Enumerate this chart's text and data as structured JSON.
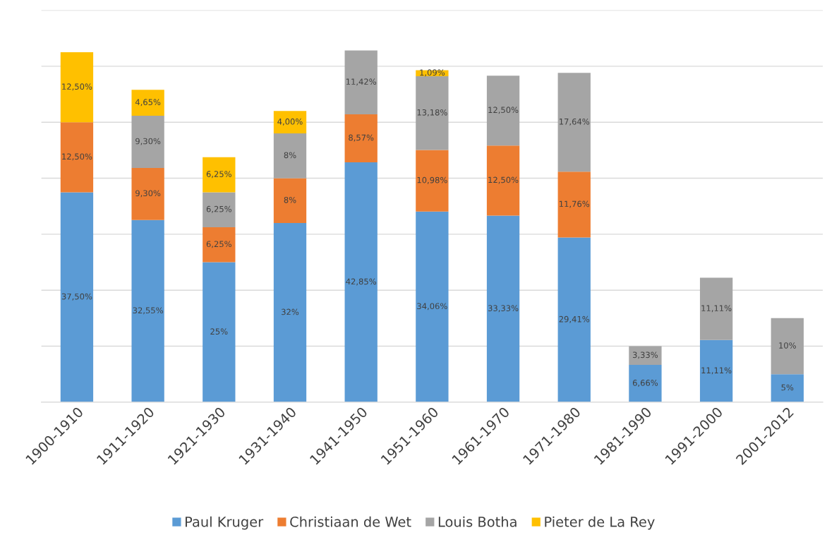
{
  "chart_data": {
    "type": "bar",
    "stacked": true,
    "categories": [
      "1900-1910",
      "1911-1920",
      "1921-1930",
      "1931-1940",
      "1941-1950",
      "1951-1960",
      "1961-1970",
      "1971-1980",
      "1981-1990",
      "1991-2000",
      "2001-2012"
    ],
    "series": [
      {
        "name": "Paul Kruger",
        "color": "#5b9bd5",
        "values": [
          37.5,
          32.55,
          25,
          32,
          42.85,
          34.06,
          33.33,
          29.41,
          6.66,
          11.11,
          5
        ],
        "value_labels": [
          "37,50%",
          "32,55%",
          "25%",
          "32%",
          "42,85%",
          "34,06%",
          "33,33%",
          "29,41%",
          "6,66%",
          "11,11%",
          "5%"
        ]
      },
      {
        "name": "Christiaan de Wet",
        "color": "#ed7d31",
        "values": [
          12.5,
          9.3,
          6.25,
          8,
          8.57,
          10.98,
          12.5,
          11.76,
          null,
          null,
          null
        ],
        "value_labels": [
          "12,50%",
          "9,30%",
          "6,25%",
          "8%",
          "8,57%",
          "10,98%",
          "12,50%",
          "11,76%",
          null,
          null,
          null
        ]
      },
      {
        "name": "Louis Botha",
        "color": "#a5a5a5",
        "values": [
          null,
          9.3,
          6.25,
          8,
          11.42,
          13.18,
          12.5,
          17.64,
          3.33,
          11.11,
          10
        ],
        "value_labels": [
          null,
          "9,30%",
          "6,25%",
          "8%",
          "11,42%",
          "13,18%",
          "12,50%",
          "17,64%",
          "3,33%",
          "11,11%",
          "10%"
        ]
      },
      {
        "name": "Pieter de La Rey",
        "color": "#ffc000",
        "values": [
          12.5,
          4.65,
          6.25,
          4.0,
          null,
          1.09,
          null,
          null,
          null,
          null,
          null
        ],
        "value_labels": [
          "12,50%",
          "4,65%",
          "6,25%",
          "4,00%",
          null,
          "1,09%",
          null,
          null,
          null,
          null,
          null
        ]
      }
    ],
    "ylim": [
      0,
      70
    ],
    "yticks": [
      {
        "value": 0,
        "label": null
      },
      {
        "value": 10,
        "label": null
      },
      {
        "value": 20,
        "label": null
      },
      {
        "value": 30,
        "label": null
      },
      {
        "value": 40,
        "label": null
      },
      {
        "value": 50,
        "label": null
      },
      {
        "value": 60,
        "label": null
      },
      {
        "value": 70,
        "label": null
      }
    ],
    "grid": "y",
    "tick_labels": "x",
    "legend": "bottom"
  }
}
